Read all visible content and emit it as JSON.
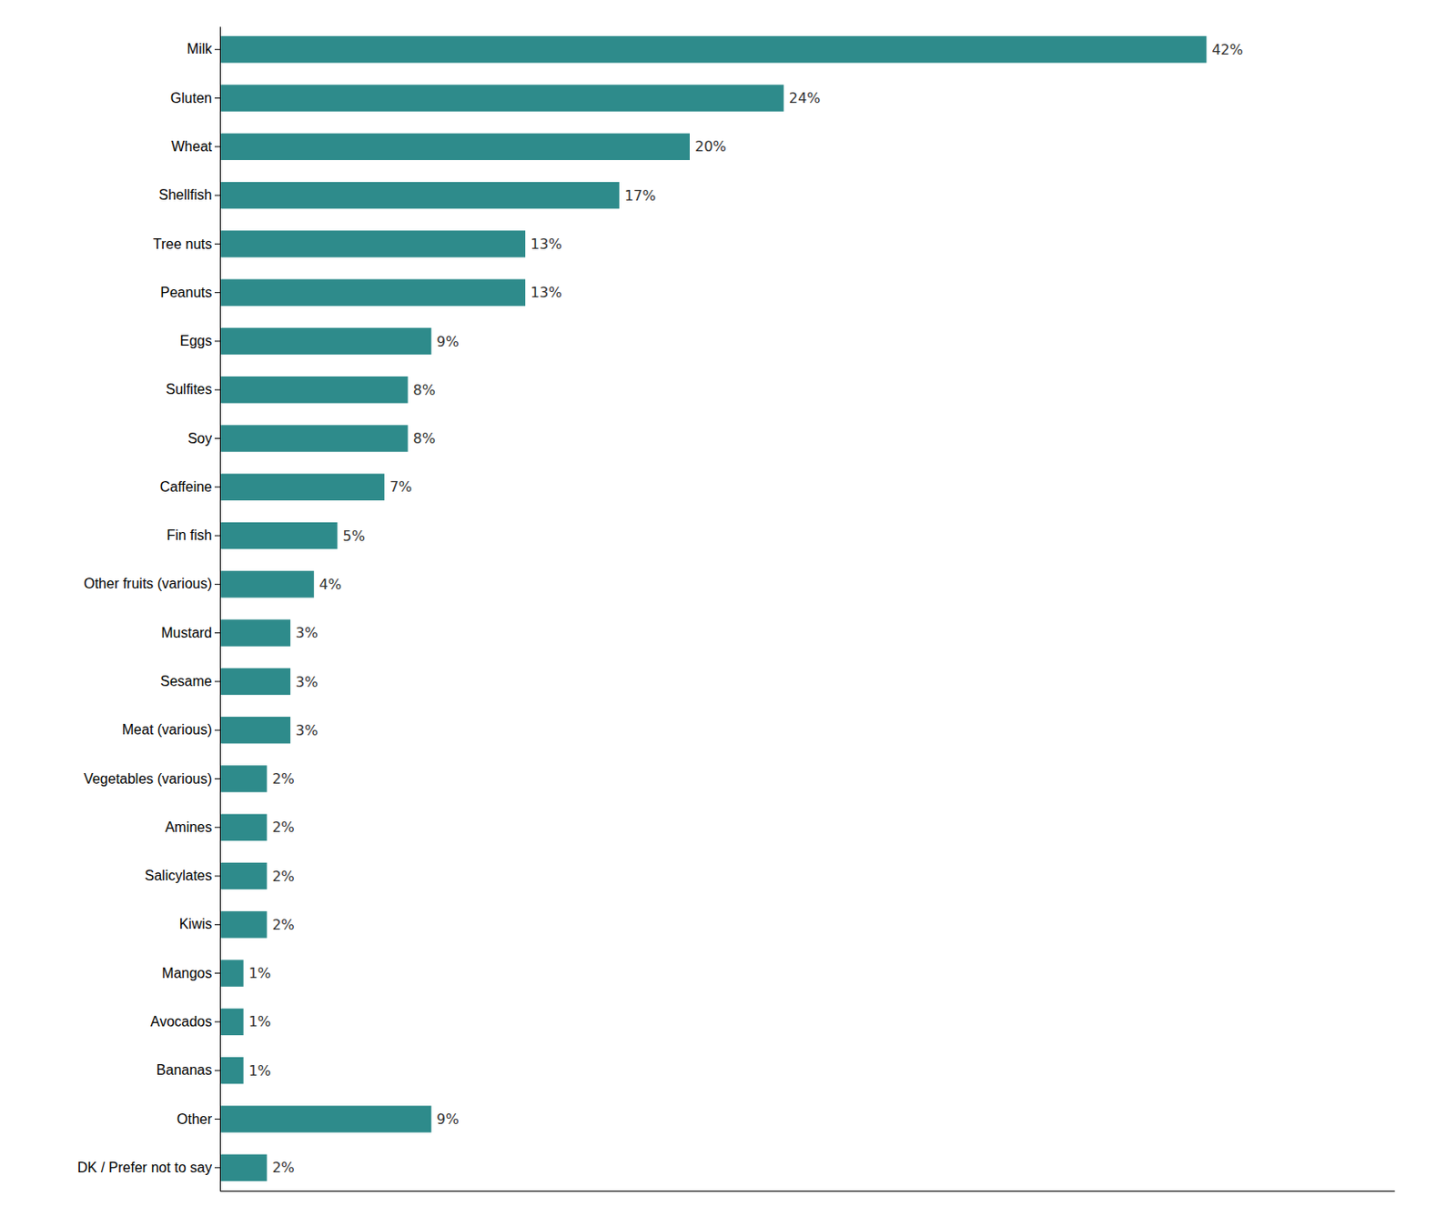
{
  "chart_data": {
    "type": "bar",
    "orientation": "horizontal",
    "categories": [
      "DK / Prefer not to say",
      "Other",
      "Bananas",
      "Avocados",
      "Mangos",
      "Kiwis",
      "Salicylates",
      "Amines",
      "Vegetables (various)",
      "Meat (various)",
      "Sesame",
      "Mustard",
      "Other fruits (various)",
      "Fin fish",
      "Caffeine",
      "Soy",
      "Sulfites",
      "Eggs",
      "Peanuts",
      "Tree nuts",
      "Shellfish",
      "Wheat",
      "Gluten",
      "Milk"
    ],
    "values": [
      2,
      9,
      1,
      1,
      1,
      2,
      2,
      2,
      2,
      3,
      3,
      3,
      4,
      5,
      7,
      8,
      8,
      9,
      13,
      13,
      17,
      20,
      24,
      42
    ],
    "value_labels": [
      "2%",
      "9%",
      "1%",
      "1%",
      "1%",
      "2%",
      "2%",
      "2%",
      "2%",
      "3%",
      "3%",
      "3%",
      "4%",
      "5%",
      "7%",
      "8%",
      "8%",
      "9%",
      "13%",
      "13%",
      "17%",
      "20%",
      "24%",
      "42%"
    ],
    "data_labels": true,
    "color": "#2e8b8b",
    "xlim": [
      0,
      50
    ],
    "tick_labels": "y",
    "grid": false
  }
}
